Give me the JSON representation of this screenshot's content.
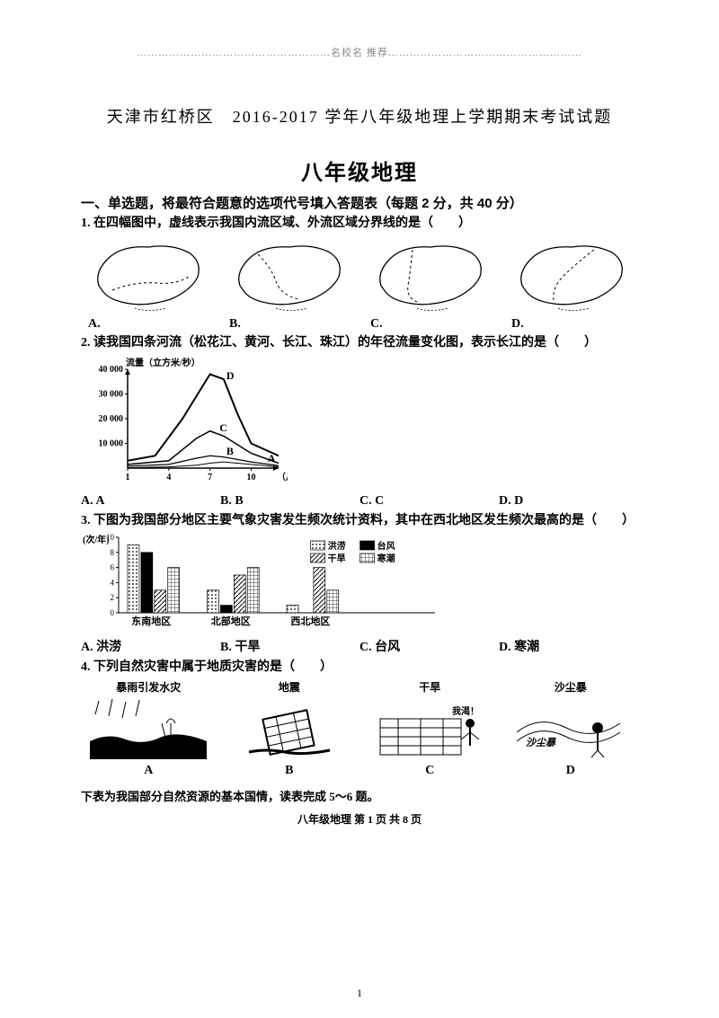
{
  "header": {
    "banner": "………………………………………………名校名 推荐………………………………………………"
  },
  "doc_title": "天津市红桥区　2016-2017 学年八年级地理上学期期末考试试题",
  "exam_title": "八年级地理",
  "section1": "一、单选题，将最符合题意的选项代号填入答题表（每题 2 分，共 40 分）",
  "q1": {
    "text": "1. 在四幅图中，虚线表示我国内流区域、外流区域分界线的是（　　）",
    "opts": {
      "a": "A.",
      "b": "B.",
      "c": "C.",
      "d": "D."
    }
  },
  "q2": {
    "text": "2. 读我国四条河流（松花江、黄河、长江、珠江）的年径流量变化图，表示长江的是（　　）",
    "chart": {
      "type": "line",
      "ylabel": "流量（立方米/秒）",
      "xlabel_suffix": "（月）",
      "ylim": [
        0,
        40000
      ],
      "yticks": [
        0,
        10000,
        20000,
        30000,
        40000
      ],
      "ytick_labels": [
        "0",
        "10 000",
        "20 000",
        "30 000",
        "40 000"
      ],
      "xticks": [
        1,
        4,
        7,
        10
      ],
      "xtick_labels": [
        "1",
        "4",
        "7",
        "10"
      ],
      "series": [
        {
          "name": "D",
          "color": "#000",
          "width": 2,
          "points": [
            [
              1,
              3000
            ],
            [
              3,
              5000
            ],
            [
              5,
              20000
            ],
            [
              7,
              38000
            ],
            [
              8,
              36000
            ],
            [
              9,
              22000
            ],
            [
              10,
              10000
            ],
            [
              12,
              5000
            ]
          ]
        },
        {
          "name": "C",
          "color": "#000",
          "width": 1.5,
          "points": [
            [
              1,
              1500
            ],
            [
              4,
              3000
            ],
            [
              6,
              12000
            ],
            [
              7,
              15000
            ],
            [
              8,
              13000
            ],
            [
              10,
              6000
            ],
            [
              12,
              2000
            ]
          ]
        },
        {
          "name": "B",
          "color": "#000",
          "width": 1.2,
          "points": [
            [
              1,
              800
            ],
            [
              4,
              1500
            ],
            [
              6,
              4000
            ],
            [
              7,
              5000
            ],
            [
              8,
              4500
            ],
            [
              10,
              2500
            ],
            [
              12,
              1000
            ]
          ]
        },
        {
          "name": "A",
          "color": "#000",
          "width": 1,
          "points": [
            [
              1,
              200
            ],
            [
              4,
              500
            ],
            [
              6,
              1200
            ],
            [
              7,
              2000
            ],
            [
              8,
              2500
            ],
            [
              10,
              1500
            ],
            [
              12,
              500
            ]
          ]
        }
      ],
      "label_positions": {
        "D": [
          8,
          36000
        ],
        "C": [
          7.5,
          15000
        ],
        "B": [
          8,
          5500
        ],
        "A": [
          11,
          2500
        ]
      }
    },
    "opts": {
      "a": "A. A",
      "b": "B. B",
      "c": "C. C",
      "d": "D. D"
    }
  },
  "q3": {
    "text": "3. 下图为我国部分地区主要气象灾害发生频次统计资料，其中在西北地区发生频次最高的是（　　）",
    "chart": {
      "type": "bar",
      "ylabel": "(次/年)",
      "ymax": 10,
      "yticks": [
        0,
        2,
        4,
        6,
        8,
        10
      ],
      "groups": [
        "东南地区",
        "北部地区",
        "西北地区"
      ],
      "legend": [
        {
          "name": "洪涝",
          "pattern": "dots"
        },
        {
          "name": "台风",
          "pattern": "solid"
        },
        {
          "name": "干旱",
          "pattern": "diag"
        },
        {
          "name": "寒潮",
          "pattern": "grid"
        }
      ],
      "data": {
        "东南地区": {
          "洪涝": 9,
          "台风": 8,
          "干旱": 3,
          "寒潮": 6
        },
        "北部地区": {
          "洪涝": 3,
          "台风": 1,
          "干旱": 5,
          "寒潮": 6
        },
        "西北地区": {
          "洪涝": 1,
          "台风": 0,
          "干旱": 6,
          "寒潮": 3
        }
      }
    },
    "opts": {
      "a": "A. 洪涝",
      "b": "B. 干旱",
      "c": "C. 台风",
      "d": "D. 寒潮"
    }
  },
  "q4": {
    "text": "4. 下列自然灾害中属于地质灾害的是（　　）",
    "captions": {
      "a": "暴雨引发水灾",
      "b": "地震",
      "c": "干旱",
      "d": "沙尘暴"
    },
    "opts": {
      "a": "A",
      "b": "B",
      "c": "C",
      "d": "D"
    }
  },
  "footer_note": "下表为我国部分自然资源的基本国情，读表完成 5～6 题。",
  "page_marker": "八年级地理 第 1 页 共 8 页",
  "page_number": "1",
  "colors": {
    "ink": "#000000",
    "bg": "#ffffff",
    "faint": "#888888"
  }
}
